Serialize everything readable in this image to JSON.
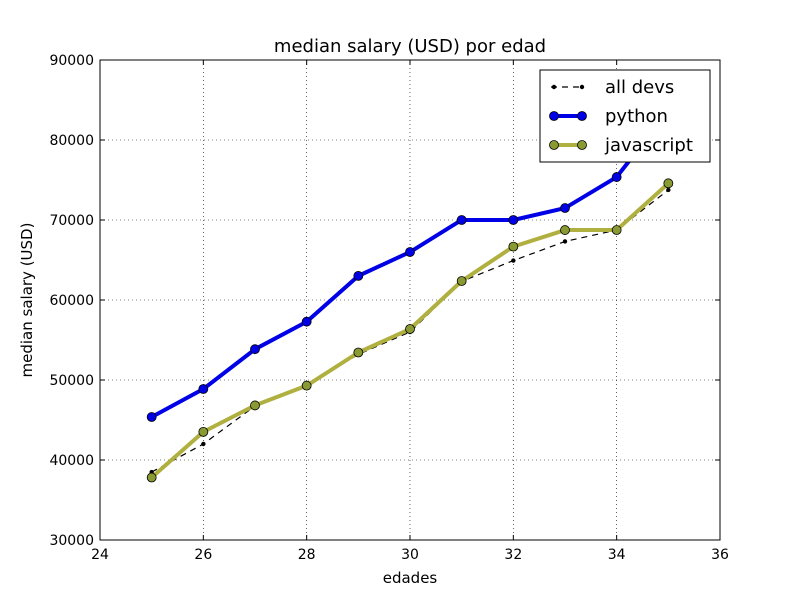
{
  "chart_data": {
    "type": "line",
    "title": "median salary (USD) por edad",
    "xlabel": "edades",
    "ylabel": "median salary (USD)",
    "xlim": [
      24,
      36
    ],
    "ylim": [
      30000,
      90000
    ],
    "xticks": [
      24,
      26,
      28,
      30,
      32,
      34,
      36
    ],
    "yticks": [
      30000,
      40000,
      50000,
      60000,
      70000,
      80000,
      90000
    ],
    "grid": true,
    "legend_position": "top-right",
    "x": [
      25,
      26,
      27,
      28,
      29,
      30,
      31,
      32,
      33,
      34,
      35
    ],
    "series": [
      {
        "name": "all devs",
        "color": "#000000",
        "style": "dashed",
        "marker": "small-dot",
        "values": [
          38496,
          42000,
          46752,
          49320,
          53200,
          56000,
          62316,
          64928,
          67317,
          68748,
          73752
        ]
      },
      {
        "name": "python",
        "color": "#0000e6",
        "style": "solid",
        "marker": "circle",
        "values": [
          45372,
          48876,
          53850,
          57287,
          63016,
          65998,
          70003,
          70000,
          71496,
          75370,
          83640
        ]
      },
      {
        "name": "javascript",
        "color": "#b0b040",
        "marker_color": "#8a9a32",
        "style": "solid",
        "marker": "circle",
        "values": [
          37810,
          43515,
          46823,
          49293,
          53437,
          56373,
          62375,
          66674,
          68745,
          68746,
          74583
        ]
      }
    ]
  }
}
